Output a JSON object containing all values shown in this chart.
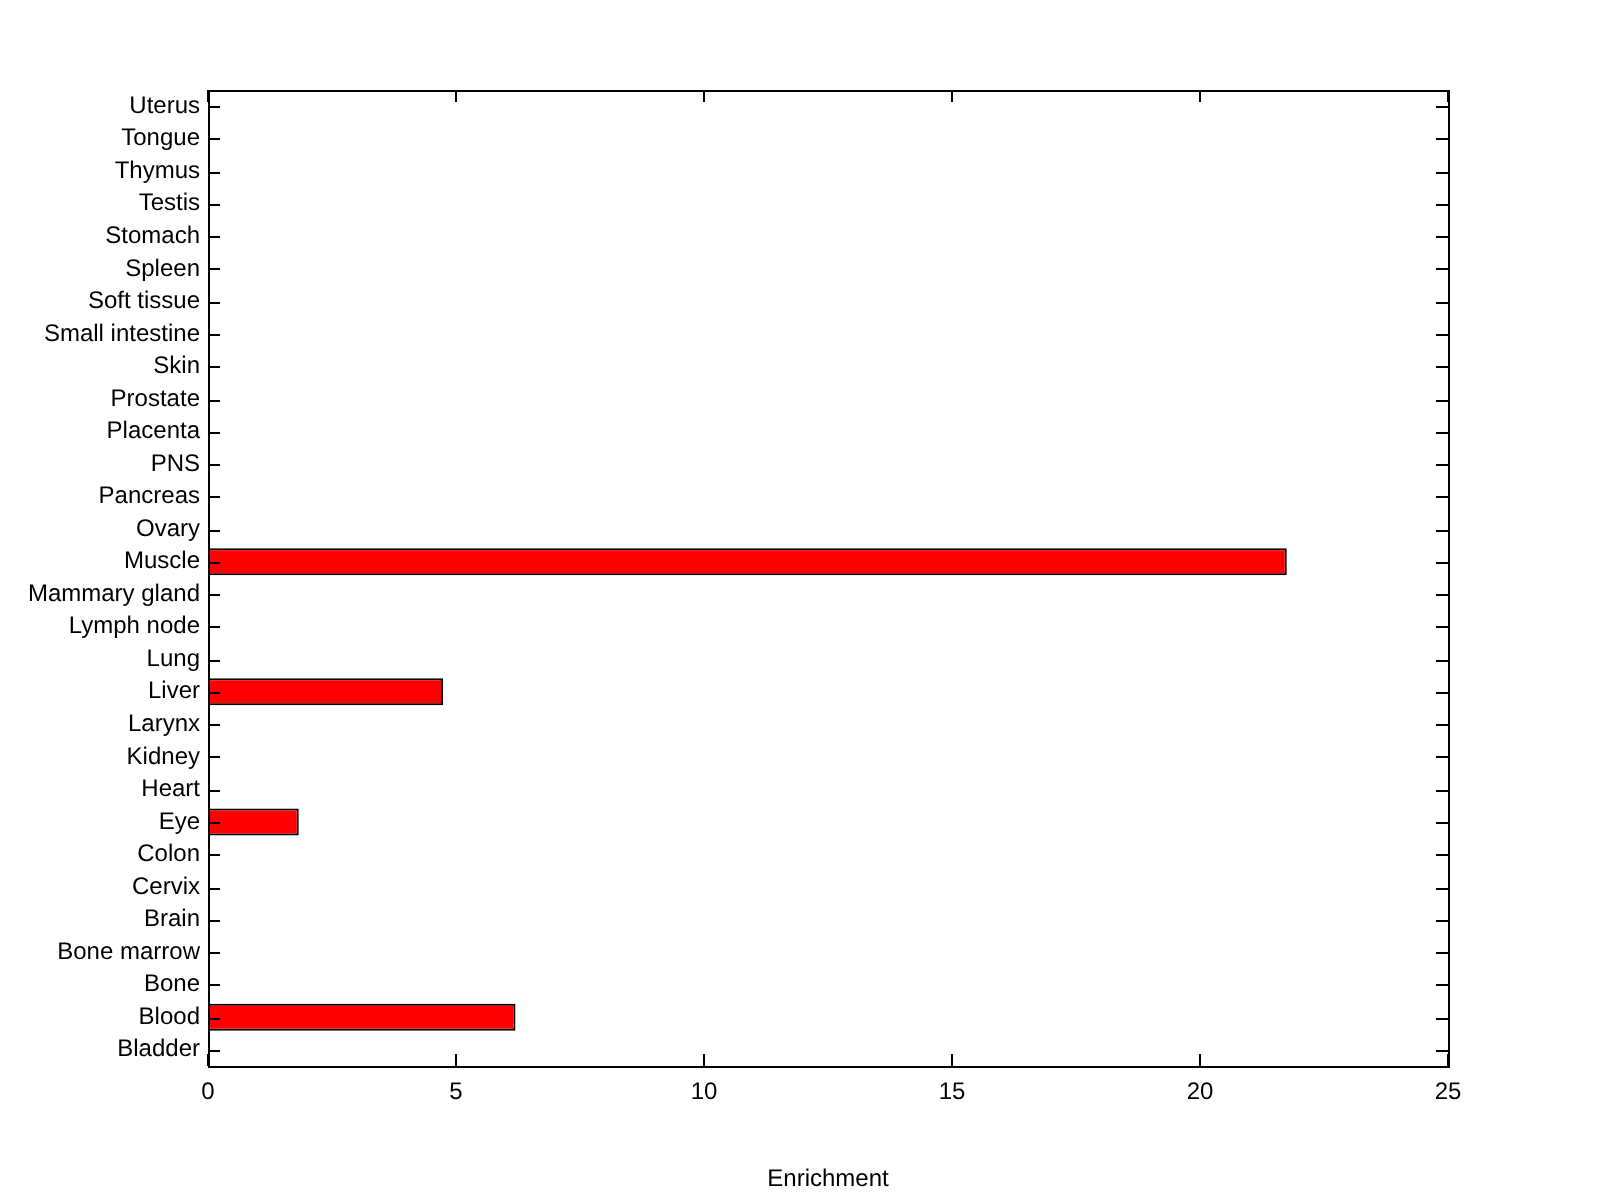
{
  "chart_data": {
    "type": "bar",
    "orientation": "horizontal",
    "xlabel": "Enrichment",
    "categories": [
      "Uterus",
      "Tongue",
      "Thymus",
      "Testis",
      "Stomach",
      "Spleen",
      "Soft tissue",
      "Small intestine",
      "Skin",
      "Prostate",
      "Placenta",
      "PNS",
      "Pancreas",
      "Ovary",
      "Muscle",
      "Mammary gland",
      "Lymph node",
      "Lung",
      "Liver",
      "Larynx",
      "Kidney",
      "Heart",
      "Eye",
      "Colon",
      "Cervix",
      "Brain",
      "Bone marrow",
      "Bone",
      "Blood",
      "Bladder"
    ],
    "values": [
      0,
      0,
      0,
      0,
      0,
      0,
      0,
      0,
      0,
      0,
      0,
      0,
      0,
      0,
      21.75,
      0,
      0,
      0,
      4.74,
      0,
      0,
      0,
      1.83,
      0,
      0,
      0,
      0,
      0,
      6.2,
      0
    ],
    "color": "#ff0000",
    "xlim": [
      0,
      25
    ],
    "xticks": [
      0,
      5,
      10,
      15,
      20,
      25
    ],
    "grid": false,
    "legend": false
  }
}
